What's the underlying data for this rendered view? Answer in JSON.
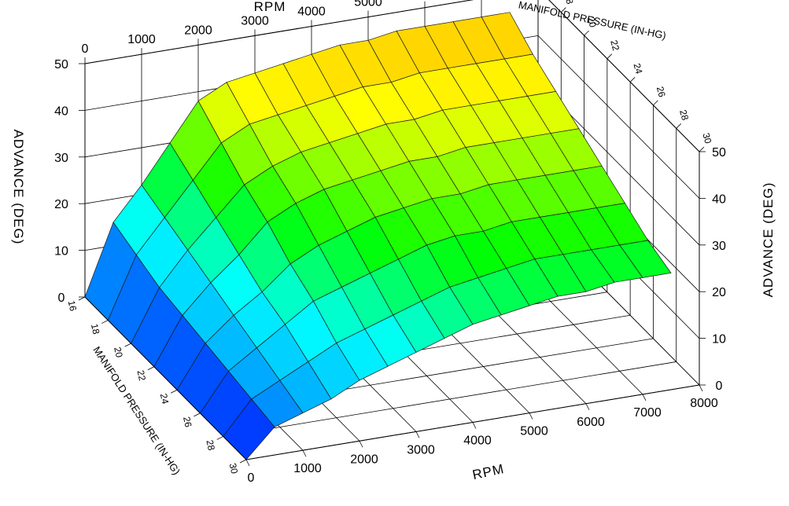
{
  "chart_data": {
    "type": "surface",
    "title": "",
    "x_axis": {
      "label": "RPM",
      "ticks": [
        "0",
        "1000",
        "2000",
        "3000",
        "4000",
        "5000",
        "6000",
        "7000",
        "8000"
      ],
      "range": [
        0,
        8000
      ]
    },
    "y_axis": {
      "label": "MANIFOLD PRESSURE (IN-HG)",
      "ticks": [
        "16",
        "18",
        "20",
        "22",
        "24",
        "26",
        "28",
        "30"
      ],
      "range": [
        16,
        30
      ]
    },
    "z_axis": {
      "label": "ADVANCE (DEG)",
      "ticks": [
        "0",
        "10",
        "20",
        "30",
        "40",
        "50"
      ],
      "range": [
        0,
        50
      ]
    },
    "colors": [
      "#0000ff",
      "#00a8ff",
      "#00ffff",
      "#00ff00",
      "#ffff00",
      "#ffa500"
    ],
    "rpm": [
      0,
      500,
      1000,
      1500,
      2000,
      2500,
      3000,
      3500,
      4000,
      4500,
      5000,
      5500,
      6000,
      6500,
      7000,
      7500
    ],
    "map": [
      16,
      18,
      20,
      22,
      24,
      26,
      28,
      30
    ],
    "advance": [
      [
        0,
        15,
        22,
        30,
        38,
        41,
        42,
        43,
        44,
        45,
        45,
        46,
        46,
        46,
        46,
        46
      ],
      [
        0,
        13,
        20,
        27,
        34,
        37,
        38,
        39,
        40,
        41,
        41,
        42,
        42,
        42,
        42,
        42
      ],
      [
        0,
        11,
        18,
        24,
        30,
        33,
        35,
        36,
        37,
        38,
        38,
        39,
        39,
        39,
        39,
        39
      ],
      [
        0,
        10,
        16,
        21,
        27,
        30,
        32,
        33,
        34,
        35,
        35,
        36,
        36,
        36,
        36,
        36
      ],
      [
        0,
        9,
        14,
        18,
        23,
        26,
        28,
        30,
        31,
        32,
        32,
        33,
        33,
        33,
        33,
        33
      ],
      [
        0,
        8,
        12,
        16,
        20,
        22,
        24,
        26,
        28,
        29,
        29,
        30,
        30,
        30,
        30,
        30
      ],
      [
        0,
        7,
        10,
        13,
        16,
        18,
        20,
        22,
        24,
        25,
        26,
        27,
        27,
        27,
        27,
        27
      ],
      [
        0,
        6,
        8,
        10,
        13,
        15,
        17,
        19,
        21,
        22,
        23,
        24,
        24,
        25,
        25,
        25
      ]
    ]
  }
}
